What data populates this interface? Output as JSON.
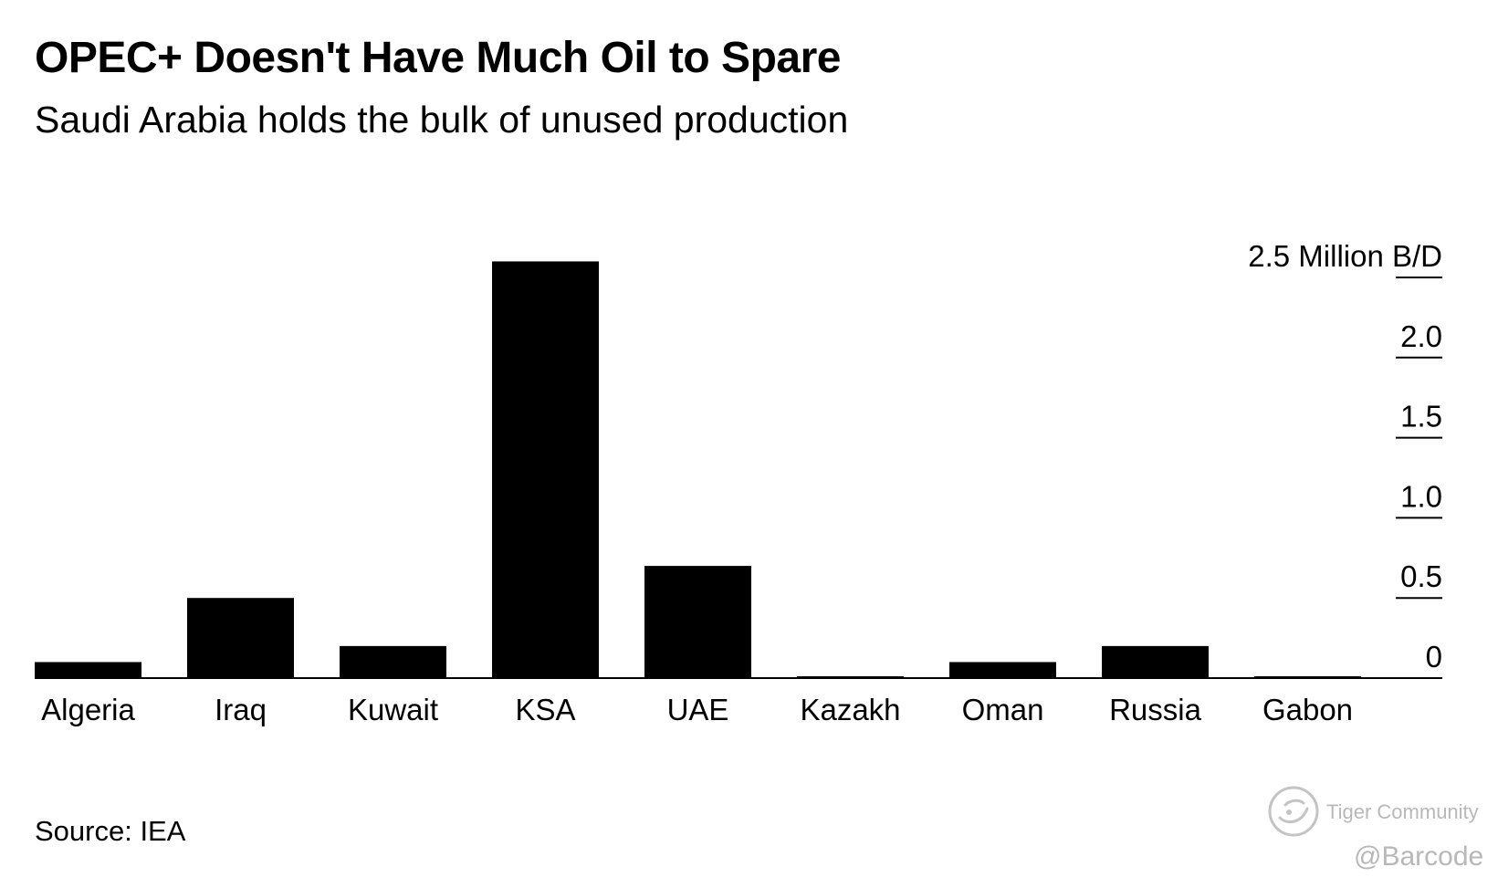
{
  "title": "OPEC+ Doesn't Have Much Oil to Spare",
  "subtitle": "Saudi Arabia holds the bulk of unused production",
  "source": "Source: IEA",
  "watermark": {
    "brand": "Tiger Community",
    "handle": "@Barcode",
    "logo_icon": "tiger-community-logo-icon"
  },
  "chart_data": {
    "type": "bar",
    "title": "OPEC+ Doesn't Have Much Oil to Spare",
    "xlabel": "",
    "ylabel": "Million B/D",
    "ylim": [
      0,
      2.5
    ],
    "categories": [
      "Algeria",
      "Iraq",
      "Kuwait",
      "KSA",
      "UAE",
      "Kazakh",
      "Oman",
      "Russia",
      "Gabon"
    ],
    "values": [
      0.1,
      0.5,
      0.2,
      2.6,
      0.7,
      0.0,
      0.1,
      0.2,
      0.0
    ],
    "y_ticks": [
      {
        "value": 0,
        "label": "0"
      },
      {
        "value": 0.5,
        "label": "0.5"
      },
      {
        "value": 1.0,
        "label": "1.0"
      },
      {
        "value": 1.5,
        "label": "1.5"
      },
      {
        "value": 2.0,
        "label": "2.0"
      },
      {
        "value": 2.5,
        "label": "2.5 Million B/D"
      }
    ],
    "bar_color": "#000000",
    "axis_position": "right",
    "grid": false
  }
}
